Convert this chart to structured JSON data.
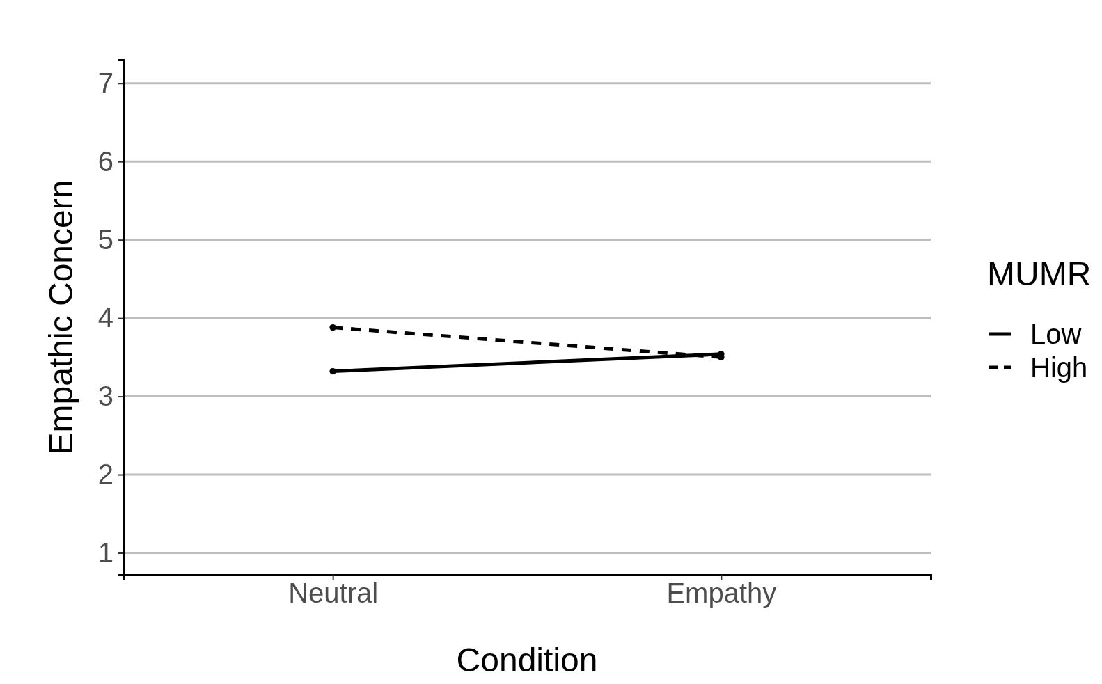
{
  "chart_data": {
    "type": "line",
    "xlabel": "Condition",
    "ylabel": "Empathic Concern",
    "legend_title": "MUMR",
    "categories": [
      "Neutral",
      "Empathy"
    ],
    "series": [
      {
        "name": "Low",
        "color": "#000000",
        "values": [
          3.32,
          3.54
        ],
        "line_style": "solid"
      },
      {
        "name": "High",
        "color": "#000000",
        "values": [
          3.88,
          3.5
        ],
        "line_style": "dashed"
      }
    ],
    "ylim": [
      0.72,
      7.3
    ],
    "yticks": [
      1,
      2,
      3,
      4,
      5,
      6,
      7
    ],
    "grid": "y",
    "legend": "right",
    "marker": "circle"
  }
}
